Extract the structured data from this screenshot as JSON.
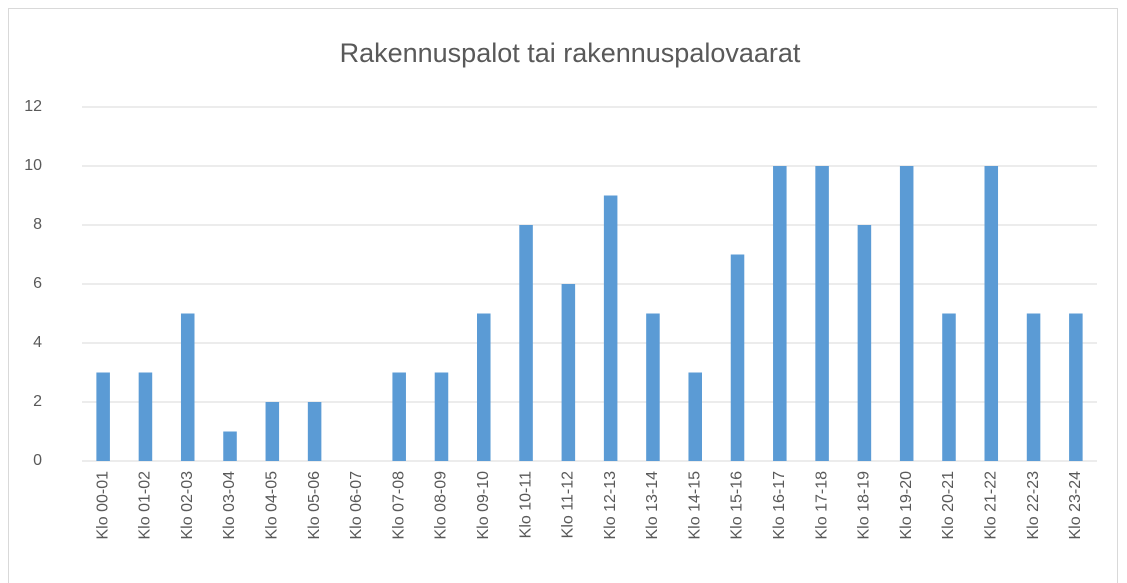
{
  "chart_data": {
    "type": "bar",
    "title": "Rakennuspalot tai rakennuspalovaarat",
    "categories": [
      "Klo 00-01",
      "Klo 01-02",
      "Klo 02-03",
      "Klo 03-04",
      "Klo 04-05",
      "Klo 05-06",
      "Klo 06-07",
      "Klo 07-08",
      "Klo 08-09",
      "Klo 09-10",
      "Klo 10-11",
      "Klo 11-12",
      "Klo 12-13",
      "Klo 13-14",
      "Klo 14-15",
      "Klo 15-16",
      "Klo 16-17",
      "Klo 17-18",
      "Klo 18-19",
      "Klo 19-20",
      "Klo 20-21",
      "Klo 21-22",
      "Klo 22-23",
      "Klo 23-24"
    ],
    "values": [
      3,
      3,
      5,
      1,
      2,
      2,
      0,
      3,
      3,
      5,
      8,
      6,
      9,
      5,
      3,
      7,
      10,
      10,
      8,
      10,
      5,
      10,
      5,
      5
    ],
    "color": "#5b9bd5",
    "ylim": [
      0,
      12
    ],
    "yticks": [
      0,
      2,
      4,
      6,
      8,
      10,
      12
    ],
    "grid": true
  }
}
